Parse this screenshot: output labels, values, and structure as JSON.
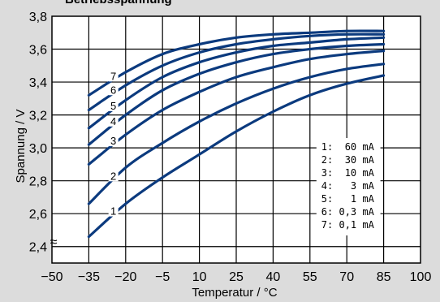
{
  "chart_data": {
    "type": "line",
    "title": "Betriebsspannung",
    "xlabel": "Temperatur / °C",
    "ylabel": "Spannung / V",
    "xlim": [
      -50,
      100
    ],
    "ylim": [
      2.3,
      3.8
    ],
    "xticks": [
      "−50",
      "−35",
      "−20",
      "−5",
      "10",
      "25",
      "40",
      "55",
      "70",
      "85",
      "100"
    ],
    "yticks": [
      "3,8",
      "3,6",
      "3,4",
      "3,2",
      "3,0",
      "2,8",
      "2,6",
      "2,4"
    ],
    "grid": true,
    "line_color": "#0b3a7e",
    "axis_break": "≈",
    "legend_position": "right",
    "x": [
      -35,
      -20,
      -5,
      10,
      25,
      40,
      55,
      70,
      85
    ],
    "series": [
      {
        "name": "1",
        "legend": "1:  60 mA",
        "values": [
          2.46,
          2.66,
          2.82,
          2.96,
          3.1,
          3.22,
          3.32,
          3.39,
          3.44
        ]
      },
      {
        "name": "2",
        "legend": "2:  30 mA",
        "values": [
          2.66,
          2.88,
          3.03,
          3.16,
          3.27,
          3.36,
          3.43,
          3.48,
          3.51
        ]
      },
      {
        "name": "3",
        "legend": "3:  10 mA",
        "values": [
          2.9,
          3.08,
          3.23,
          3.34,
          3.43,
          3.49,
          3.54,
          3.57,
          3.59
        ]
      },
      {
        "name": "4",
        "legend": "4:   3 mA",
        "values": [
          3.02,
          3.2,
          3.35,
          3.45,
          3.52,
          3.57,
          3.6,
          3.62,
          3.63
        ]
      },
      {
        "name": "5",
        "legend": "5:   1 mA",
        "values": [
          3.12,
          3.29,
          3.43,
          3.52,
          3.58,
          3.62,
          3.64,
          3.66,
          3.67
        ]
      },
      {
        "name": "6",
        "legend": "6: 0,3 mA",
        "values": [
          3.23,
          3.38,
          3.5,
          3.58,
          3.63,
          3.66,
          3.68,
          3.69,
          3.69
        ]
      },
      {
        "name": "7",
        "legend": "7: 0,1 mA",
        "values": [
          3.32,
          3.46,
          3.57,
          3.63,
          3.67,
          3.69,
          3.7,
          3.71,
          3.71
        ]
      }
    ]
  }
}
